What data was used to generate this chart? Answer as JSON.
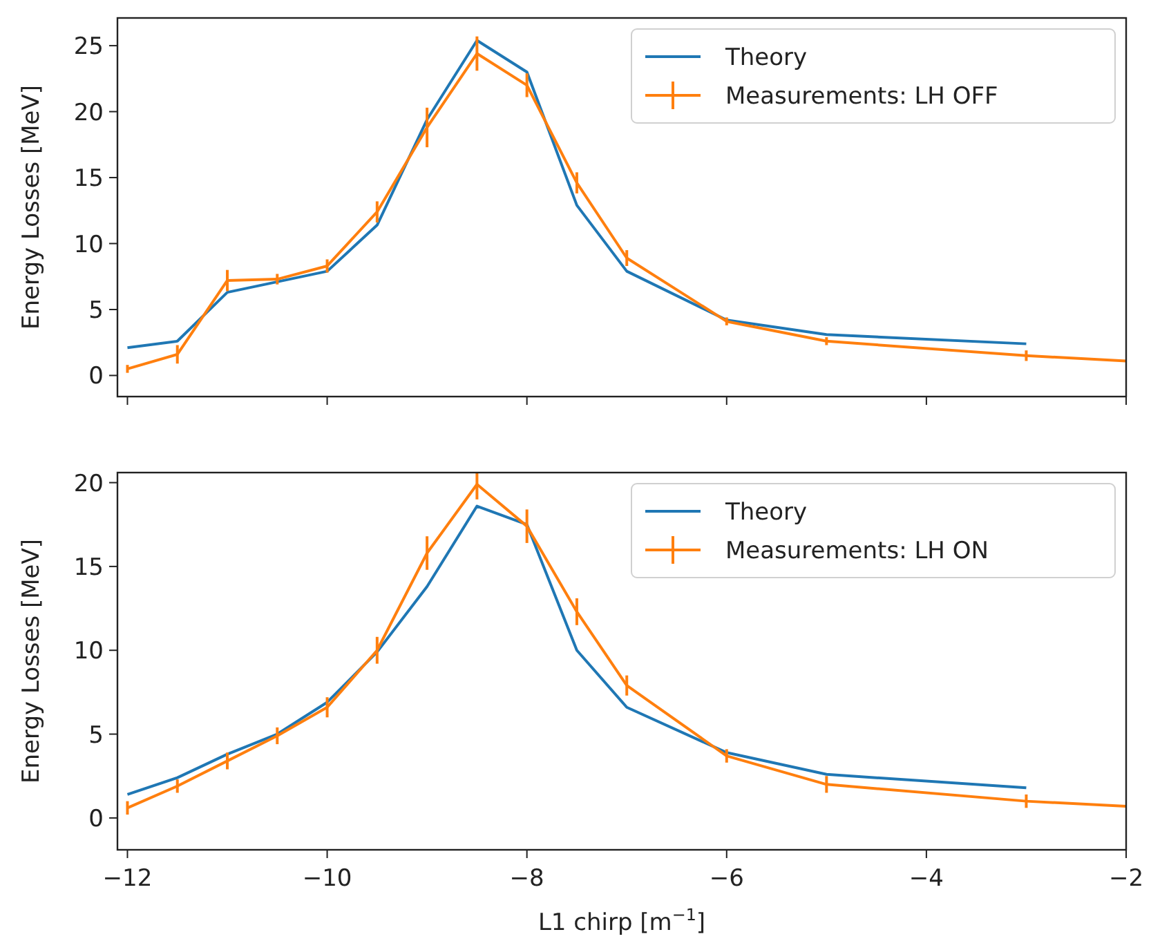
{
  "chart_data": [
    {
      "type": "line",
      "ylabel": "Energy Losses [MeV]",
      "xlim": [
        -12.1,
        -2
      ],
      "xticks": [
        -12,
        -10,
        -8,
        -6,
        -4,
        -2
      ],
      "ylim": [
        -1.6,
        27.1
      ],
      "yticks": [
        0,
        5,
        10,
        15,
        20,
        25
      ],
      "tick_labels": "y",
      "legend": "top right",
      "grid": false,
      "marker": "none",
      "line_style": "solid",
      "series": [
        {
          "name": "Theory",
          "color": "#1f77b4",
          "x": [
            -12,
            -11.5,
            -11,
            -10.5,
            -10,
            -9.5,
            -9,
            -8.5,
            -8,
            -7.5,
            -7,
            -6,
            -5,
            -3
          ],
          "values": [
            2.1,
            2.6,
            6.3,
            7.1,
            7.9,
            11.4,
            19.4,
            25.4,
            23.0,
            12.9,
            7.9,
            4.2,
            3.1,
            2.4
          ]
        },
        {
          "name": "Measurements: LH OFF",
          "color": "#ff7f0e",
          "x": [
            -12,
            -11.5,
            -11,
            -10.5,
            -10,
            -9.5,
            -9,
            -8.5,
            -8,
            -7.5,
            -7,
            -6,
            -5,
            -3,
            -2
          ],
          "values": [
            0.5,
            1.6,
            7.2,
            7.3,
            8.3,
            12.4,
            18.8,
            24.4,
            22.0,
            14.6,
            8.9,
            4.1,
            2.6,
            1.5,
            1.1
          ],
          "errors": [
            0.3,
            0.7,
            0.8,
            0.4,
            0.5,
            0.8,
            1.5,
            1.3,
            0.9,
            0.8,
            0.6,
            0.3,
            0.3,
            0.4,
            null
          ]
        }
      ]
    },
    {
      "type": "line",
      "xlabel": "L1 chirp [m$^{−1}$]",
      "ylabel": "Energy Losses [MeV]",
      "xlim": [
        -12.1,
        -2
      ],
      "xticks": [
        {
          "value": -12,
          "label": "−12"
        },
        {
          "value": -10,
          "label": "−10"
        },
        {
          "value": -8,
          "label": "−8"
        },
        {
          "value": -6,
          "label": "−6"
        },
        {
          "value": -4,
          "label": "−4"
        },
        {
          "value": -2,
          "label": "−2"
        }
      ],
      "ylim": [
        -1.9,
        20.6
      ],
      "yticks": [
        0,
        5,
        10,
        15,
        20
      ],
      "legend": "top right",
      "grid": false,
      "marker": "none",
      "line_style": "solid",
      "series": [
        {
          "name": "Theory",
          "color": "#1f77b4",
          "x": [
            -12,
            -11.5,
            -11,
            -10.5,
            -10,
            -9.5,
            -9,
            -8.5,
            -8,
            -7.5,
            -7,
            -6,
            -5,
            -3
          ],
          "values": [
            1.4,
            2.4,
            3.8,
            5.0,
            6.9,
            9.9,
            13.8,
            18.6,
            17.5,
            10.0,
            6.6,
            3.9,
            2.6,
            1.8
          ]
        },
        {
          "name": "Measurements: LH ON",
          "color": "#ff7f0e",
          "x": [
            -12,
            -11.5,
            -11,
            -10.5,
            -10,
            -9.5,
            -9,
            -8.5,
            -8,
            -7.5,
            -7,
            -6,
            -5,
            -3,
            -2
          ],
          "values": [
            0.6,
            1.9,
            3.4,
            4.9,
            6.6,
            10.0,
            15.8,
            19.9,
            17.4,
            12.3,
            7.9,
            3.7,
            2.0,
            1.0,
            0.7
          ],
          "errors": [
            0.4,
            0.4,
            0.5,
            0.5,
            0.6,
            0.8,
            1.0,
            0.9,
            1.0,
            0.8,
            0.6,
            0.4,
            0.5,
            0.4,
            null
          ]
        }
      ]
    }
  ]
}
